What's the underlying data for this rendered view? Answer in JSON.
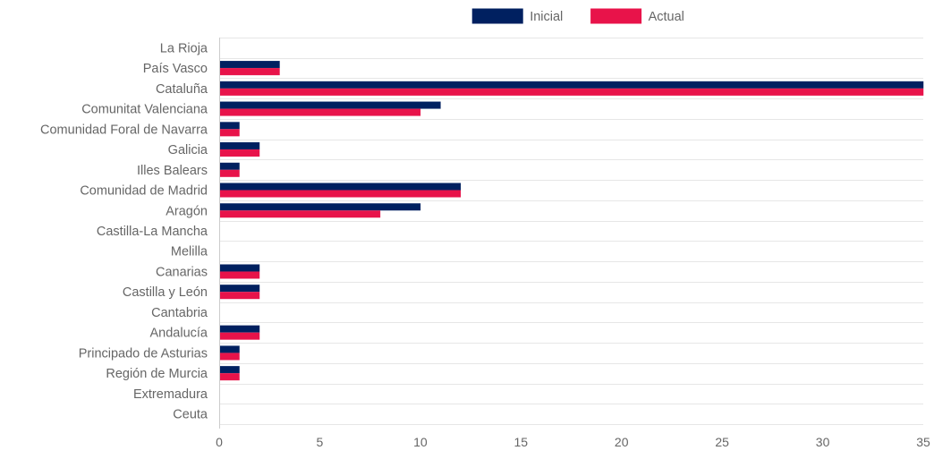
{
  "chart_data": {
    "type": "bar",
    "orientation": "horizontal",
    "categories": [
      "La Rioja",
      "País Vasco",
      "Cataluña",
      "Comunitat Valenciana",
      "Comunidad Foral de Navarra",
      "Galicia",
      "Illes Balears",
      "Comunidad de Madrid",
      "Aragón",
      "Castilla-La Mancha",
      "Melilla",
      "Canarias",
      "Castilla y León",
      "Cantabria",
      "Andalucía",
      "Principado de Asturias",
      "Región de Murcia",
      "Extremadura",
      "Ceuta"
    ],
    "series": [
      {
        "name": "Inicial",
        "color": "#002060",
        "values": [
          0,
          3,
          35,
          11,
          1,
          2,
          1,
          12,
          10,
          0,
          0,
          2,
          2,
          0,
          2,
          1,
          1,
          0,
          0
        ]
      },
      {
        "name": "Actual",
        "color": "#E8134A",
        "values": [
          0,
          3,
          35,
          10,
          1,
          2,
          1,
          12,
          8,
          0,
          0,
          2,
          2,
          0,
          2,
          1,
          1,
          0,
          0
        ]
      }
    ],
    "xlim": [
      0,
      35
    ],
    "x_ticks": [
      "0",
      "5",
      "10",
      "15",
      "20",
      "25",
      "30",
      "35"
    ],
    "title": "",
    "xlabel": "",
    "ylabel": "",
    "grid": "horizontal",
    "legend_position": "top"
  }
}
